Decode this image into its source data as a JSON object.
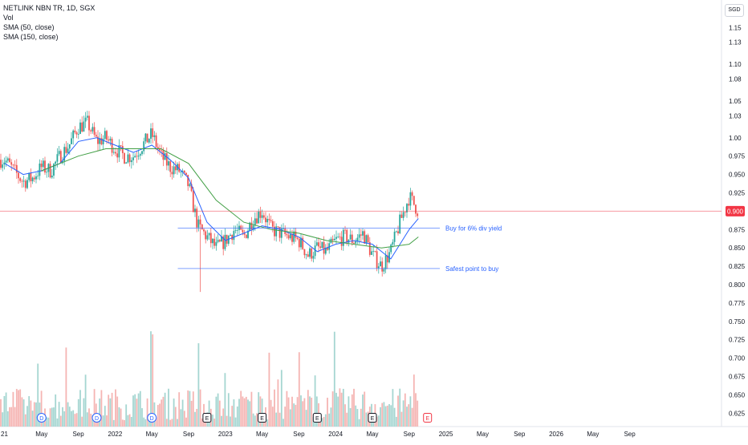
{
  "legend": {
    "symbol": "NETLINK NBN TR, 1D, SGX",
    "vol": "Vol",
    "sma50": "SMA (50, close)",
    "sma150": "SMA (150, close)"
  },
  "currency": "SGD",
  "current_price": "0.900",
  "colors": {
    "up": "#26a69a",
    "down": "#ef5350",
    "sma_fast": "#2962ff",
    "sma_slow": "#43a047",
    "price_line": "#f23645",
    "annotation": "#2962ff",
    "vol_up": "#a5d6d1",
    "vol_down": "#f5b5b3"
  },
  "chart_data": {
    "type": "candlestick",
    "title": "NETLINK NBN TR, 1D, SGX",
    "x_labels": [
      "21",
      "May",
      "Sep",
      "2022",
      "May",
      "Sep",
      "2023",
      "May",
      "Sep",
      "2024",
      "May",
      "Sep",
      "2025",
      "May",
      "Sep",
      "2026",
      "May",
      "Sep"
    ],
    "y_ticks": [
      "1.15",
      "1.13",
      "1.10",
      "1.08",
      "1.05",
      "1.03",
      "1.00",
      "0.975",
      "0.950",
      "0.925",
      "0.900",
      "0.875",
      "0.850",
      "0.825",
      "0.800",
      "0.775",
      "0.750",
      "0.725",
      "0.700",
      "0.675",
      "0.650",
      "0.625"
    ],
    "ylim": [
      0.6125,
      1.1625
    ],
    "price_path": [
      [
        "2021-01",
        0.97
      ],
      [
        "2021-02",
        0.955
      ],
      [
        "2021-03",
        0.94
      ],
      [
        "2021-04",
        0.945
      ],
      [
        "2021-05",
        0.96
      ],
      [
        "2021-06",
        0.955
      ],
      [
        "2021-07",
        0.975
      ],
      [
        "2021-08",
        0.99
      ],
      [
        "2021-09",
        1.015
      ],
      [
        "2021-10",
        1.02
      ],
      [
        "2021-11",
        0.995
      ],
      [
        "2021-12",
        1.0
      ],
      [
        "2022-01",
        0.985
      ],
      [
        "2022-02",
        0.975
      ],
      [
        "2022-03",
        0.975
      ],
      [
        "2022-04",
        0.99
      ],
      [
        "2022-05",
        1.005
      ],
      [
        "2022-06",
        0.975
      ],
      [
        "2022-07",
        0.96
      ],
      [
        "2022-08",
        0.955
      ],
      [
        "2022-09",
        0.935
      ],
      [
        "2022-10",
        0.88
      ],
      [
        "2022-11",
        0.865
      ],
      [
        "2022-12",
        0.85
      ],
      [
        "2023-01",
        0.86
      ],
      [
        "2023-02",
        0.875
      ],
      [
        "2023-03",
        0.865
      ],
      [
        "2023-04",
        0.89
      ],
      [
        "2023-05",
        0.9
      ],
      [
        "2023-06",
        0.875
      ],
      [
        "2023-07",
        0.87
      ],
      [
        "2023-08",
        0.865
      ],
      [
        "2023-09",
        0.86
      ],
      [
        "2023-10",
        0.84
      ],
      [
        "2023-11",
        0.85
      ],
      [
        "2023-12",
        0.845
      ],
      [
        "2024-01",
        0.86
      ],
      [
        "2024-02",
        0.865
      ],
      [
        "2024-03",
        0.86
      ],
      [
        "2024-04",
        0.87
      ],
      [
        "2024-05",
        0.84
      ],
      [
        "2024-06",
        0.825
      ],
      [
        "2024-07",
        0.845
      ],
      [
        "2024-08",
        0.885
      ],
      [
        "2024-09",
        0.92
      ],
      [
        "2024-10",
        0.9
      ]
    ],
    "sma50": [
      [
        "2021-01",
        0.965
      ],
      [
        "2021-03",
        0.95
      ],
      [
        "2021-05",
        0.955
      ],
      [
        "2021-07",
        0.965
      ],
      [
        "2021-09",
        0.995
      ],
      [
        "2021-11",
        1.0
      ],
      [
        "2022-01",
        0.99
      ],
      [
        "2022-03",
        0.98
      ],
      [
        "2022-05",
        0.99
      ],
      [
        "2022-07",
        0.97
      ],
      [
        "2022-09",
        0.945
      ],
      [
        "2022-11",
        0.885
      ],
      [
        "2023-01",
        0.86
      ],
      [
        "2023-03",
        0.87
      ],
      [
        "2023-05",
        0.88
      ],
      [
        "2023-07",
        0.875
      ],
      [
        "2023-09",
        0.865
      ],
      [
        "2023-11",
        0.845
      ],
      [
        "2024-01",
        0.855
      ],
      [
        "2024-03",
        0.86
      ],
      [
        "2024-05",
        0.855
      ],
      [
        "2024-07",
        0.835
      ],
      [
        "2024-09",
        0.875
      ],
      [
        "2024-10",
        0.89
      ]
    ],
    "sma150": [
      [
        "2021-05",
        0.955
      ],
      [
        "2021-09",
        0.975
      ],
      [
        "2021-12",
        0.985
      ],
      [
        "2022-03",
        0.985
      ],
      [
        "2022-06",
        0.985
      ],
      [
        "2022-09",
        0.965
      ],
      [
        "2022-12",
        0.915
      ],
      [
        "2023-03",
        0.885
      ],
      [
        "2023-06",
        0.875
      ],
      [
        "2023-09",
        0.87
      ],
      [
        "2023-12",
        0.86
      ],
      [
        "2024-03",
        0.855
      ],
      [
        "2024-06",
        0.85
      ],
      [
        "2024-09",
        0.855
      ],
      [
        "2024-10",
        0.865
      ]
    ],
    "horizontal_lines": [
      {
        "label": "Buy for 6% div yield",
        "y": 0.877,
        "from": "2022-08",
        "to": "2024-12"
      },
      {
        "label": "Safest point to buy",
        "y": 0.822,
        "from": "2022-08",
        "to": "2024-12"
      }
    ],
    "events": [
      {
        "type": "dividend",
        "label": "D",
        "date": "2021-05"
      },
      {
        "type": "dividend",
        "label": "D",
        "date": "2021-11"
      },
      {
        "type": "dividend",
        "label": "D",
        "date": "2022-05"
      },
      {
        "type": "earnings",
        "label": "E",
        "date": "2022-11"
      },
      {
        "type": "earnings",
        "label": "E",
        "date": "2023-05"
      },
      {
        "type": "earnings",
        "label": "E",
        "date": "2023-11"
      },
      {
        "type": "earnings",
        "label": "E",
        "date": "2024-05"
      },
      {
        "type": "earnings",
        "label": "E",
        "date": "2024-11"
      }
    ],
    "grid": false
  }
}
